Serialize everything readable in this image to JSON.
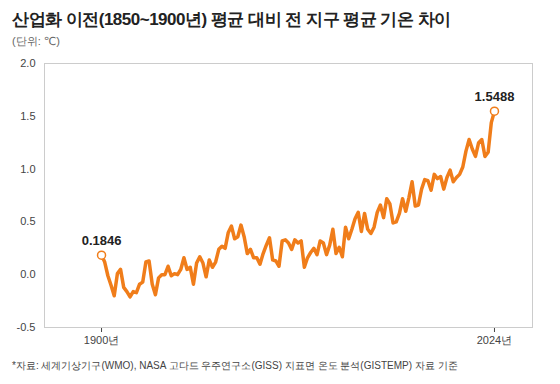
{
  "chart_data": {
    "type": "line",
    "title": "산업화 이전(1850~1900년) 평균 대비 전 지구 평균 기온 차이",
    "subtitle": "(단위: ℃)",
    "caption": "*자료: 세계기상기구(WMO), NASA 고다드 우주연구소(GISS) 지표면 온도 분석(GISTEMP) 자료 기준",
    "x": [
      1900,
      1901,
      1902,
      1903,
      1904,
      1905,
      1906,
      1907,
      1908,
      1909,
      1910,
      1911,
      1912,
      1913,
      1914,
      1915,
      1916,
      1917,
      1918,
      1919,
      1920,
      1921,
      1922,
      1923,
      1924,
      1925,
      1926,
      1927,
      1928,
      1929,
      1930,
      1931,
      1932,
      1933,
      1934,
      1935,
      1936,
      1937,
      1938,
      1939,
      1940,
      1941,
      1942,
      1943,
      1944,
      1945,
      1946,
      1947,
      1948,
      1949,
      1950,
      1951,
      1952,
      1953,
      1954,
      1955,
      1956,
      1957,
      1958,
      1959,
      1960,
      1961,
      1962,
      1963,
      1964,
      1965,
      1966,
      1967,
      1968,
      1969,
      1970,
      1971,
      1972,
      1973,
      1974,
      1975,
      1976,
      1977,
      1978,
      1979,
      1980,
      1981,
      1982,
      1983,
      1984,
      1985,
      1986,
      1987,
      1988,
      1989,
      1990,
      1991,
      1992,
      1993,
      1994,
      1995,
      1996,
      1997,
      1998,
      1999,
      2000,
      2001,
      2002,
      2003,
      2004,
      2005,
      2006,
      2007,
      2008,
      2009,
      2010,
      2011,
      2012,
      2013,
      2014,
      2015,
      2016,
      2017,
      2018,
      2019,
      2020,
      2021,
      2022,
      2023,
      2024
    ],
    "series": [
      {
        "name": "전 지구 평균 기온 차이",
        "color": "#f07d1a",
        "values": [
          0.1846,
          0.12,
          -0.01,
          -0.1,
          -0.2,
          0.01,
          0.05,
          -0.12,
          -0.16,
          -0.21,
          -0.16,
          -0.17,
          -0.09,
          -0.07,
          0.12,
          0.13,
          -0.09,
          -0.19,
          -0.03,
          0.0,
          0.0,
          0.08,
          -0.01,
          0.01,
          0.0,
          0.05,
          0.16,
          0.05,
          0.07,
          -0.09,
          0.11,
          0.17,
          0.11,
          -0.02,
          0.14,
          0.07,
          0.12,
          0.24,
          0.27,
          0.25,
          0.4,
          0.46,
          0.34,
          0.36,
          0.47,
          0.36,
          0.2,
          0.24,
          0.16,
          0.16,
          0.1,
          0.2,
          0.28,
          0.35,
          0.14,
          0.13,
          0.08,
          0.32,
          0.33,
          0.3,
          0.24,
          0.33,
          0.3,
          0.32,
          0.07,
          0.16,
          0.21,
          0.25,
          0.19,
          0.32,
          0.3,
          0.19,
          0.28,
          0.43,
          0.2,
          0.26,
          0.17,
          0.45,
          0.34,
          0.43,
          0.53,
          0.59,
          0.41,
          0.58,
          0.43,
          0.39,
          0.45,
          0.59,
          0.66,
          0.54,
          0.72,
          0.67,
          0.49,
          0.5,
          0.58,
          0.72,
          0.6,
          0.73,
          0.88,
          0.65,
          0.66,
          0.81,
          0.9,
          0.89,
          0.8,
          0.95,
          0.91,
          0.93,
          0.81,
          0.92,
          0.99,
          0.88,
          0.92,
          0.95,
          1.02,
          1.17,
          1.28,
          1.19,
          1.12,
          1.25,
          1.28,
          1.12,
          1.16,
          1.44,
          1.5488
        ]
      }
    ],
    "xlim": [
      1882,
      2036
    ],
    "xticks": [
      {
        "value": 1900,
        "label": "1900년"
      },
      {
        "value": 2024,
        "label": "2024년"
      }
    ],
    "ylim": [
      -0.5,
      2.0
    ],
    "yticks": [
      {
        "value": -0.5,
        "label": "-0.5"
      },
      {
        "value": 0,
        "label": "0.0"
      },
      {
        "value": 0.5,
        "label": "0.5"
      },
      {
        "value": 1,
        "label": "1.0"
      },
      {
        "value": 1.5,
        "label": "1.5"
      },
      {
        "value": 2,
        "label": "2.0"
      }
    ],
    "grid": false,
    "annotations": [
      {
        "x": 1900,
        "y": 0.1846,
        "text": "0.1846"
      },
      {
        "x": 2024,
        "y": 1.5488,
        "text": "1.5488"
      }
    ]
  }
}
